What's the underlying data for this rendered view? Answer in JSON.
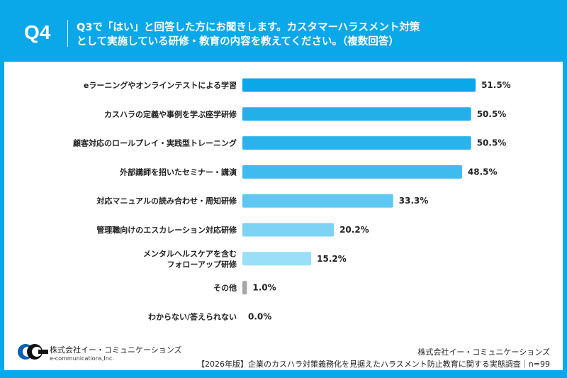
{
  "header": {
    "q": "Q4",
    "title_line1": "Q3で「はい」と回答した方にお聞きします。カスタマーハラスメント対策",
    "title_line2": "として実施している研修・教育の内容を教えてください。（複数回答）"
  },
  "chart_data": {
    "type": "bar",
    "orientation": "horizontal",
    "categories": [
      "eラーニングやオンラインテストによる学習",
      "カスハラの定義や事例を学ぶ座学研修",
      "顧客対応のロールプレイ・実践型トレーニング",
      "外部講師を招いたセミナー・講演",
      "対応マニュアルの読み合わせ・周知研修",
      "管理職向けのエスカレーション対応研修",
      "メンタルヘルスケアを含む\nフォローアップ研修",
      "その他",
      "わからない/答えられない"
    ],
    "values": [
      51.5,
      50.5,
      50.5,
      48.5,
      33.3,
      20.2,
      15.2,
      1.0,
      0.0
    ],
    "data_labels": [
      "51.5%",
      "50.5%",
      "50.5%",
      "48.5%",
      "33.3%",
      "20.2%",
      "15.2%",
      "1.0%",
      "0.0%"
    ],
    "colors": [
      "#0aa8e8",
      "#22afea",
      "#2ab2eb",
      "#3fbbee",
      "#5fc8f1",
      "#7cd3f3",
      "#98dff7",
      "#a6a6a6",
      "#a6a6a6"
    ],
    "unit": "%",
    "grid": false
  },
  "footer": {
    "logo_ja": "株式会社イー・コミュニケーションズ",
    "logo_en": "e-communications,Inc.",
    "company": "株式会社イー・コミュニケーションズ",
    "survey": "【2026年版】企業のカスハラ対策義務化を見据えたハラスメント防止教育に関する実態調査｜n=99"
  }
}
